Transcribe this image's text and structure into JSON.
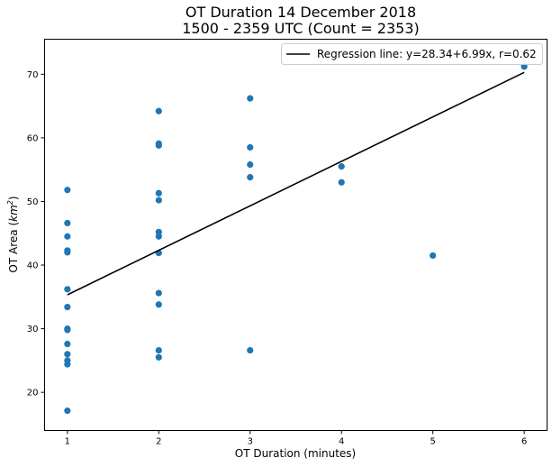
{
  "chart_data": {
    "type": "scatter",
    "title_line1": "OT Duration 14 December 2018",
    "title_line2": "1500 - 2359 UTC (Count = 2353)",
    "xlabel": "OT Duration (minutes)",
    "ylabel_main": "OT Area (",
    "ylabel_unit": "km",
    "ylabel_sup": "2",
    "ylabel_close": ")",
    "xlim": [
      0.75,
      6.25
    ],
    "ylim": [
      14.0,
      75.5
    ],
    "xticks": [
      1,
      2,
      3,
      4,
      5,
      6
    ],
    "yticks": [
      20,
      30,
      40,
      50,
      60,
      70
    ],
    "grid": false,
    "legend_position": "top-right",
    "point_color": "#1f77b4",
    "line_color": "#000000",
    "points": [
      {
        "x": 1,
        "y": 51.8
      },
      {
        "x": 1,
        "y": 46.6
      },
      {
        "x": 1,
        "y": 44.5
      },
      {
        "x": 1,
        "y": 42.3
      },
      {
        "x": 1,
        "y": 42.0
      },
      {
        "x": 1,
        "y": 36.2
      },
      {
        "x": 1,
        "y": 33.4
      },
      {
        "x": 1,
        "y": 30.0
      },
      {
        "x": 1,
        "y": 29.8
      },
      {
        "x": 1,
        "y": 27.6
      },
      {
        "x": 1,
        "y": 26.0
      },
      {
        "x": 1,
        "y": 25.0
      },
      {
        "x": 1,
        "y": 24.4
      },
      {
        "x": 1,
        "y": 17.1
      },
      {
        "x": 2,
        "y": 64.2
      },
      {
        "x": 2,
        "y": 59.1
      },
      {
        "x": 2,
        "y": 58.8
      },
      {
        "x": 2,
        "y": 51.3
      },
      {
        "x": 2,
        "y": 50.2
      },
      {
        "x": 2,
        "y": 45.2
      },
      {
        "x": 2,
        "y": 44.5
      },
      {
        "x": 2,
        "y": 41.9
      },
      {
        "x": 2,
        "y": 35.6
      },
      {
        "x": 2,
        "y": 33.8
      },
      {
        "x": 2,
        "y": 26.6
      },
      {
        "x": 2,
        "y": 25.5
      },
      {
        "x": 3,
        "y": 66.2
      },
      {
        "x": 3,
        "y": 58.5
      },
      {
        "x": 3,
        "y": 55.8
      },
      {
        "x": 3,
        "y": 53.8
      },
      {
        "x": 3,
        "y": 26.6
      },
      {
        "x": 4,
        "y": 55.5
      },
      {
        "x": 4,
        "y": 53.0
      },
      {
        "x": 5,
        "y": 41.5
      },
      {
        "x": 6,
        "y": 71.2
      }
    ],
    "regression": {
      "label": "Regression line: y=28.34+6.99x, r=0.62",
      "intercept": 28.34,
      "slope": 6.99,
      "x_start": 1,
      "x_end": 6
    }
  }
}
